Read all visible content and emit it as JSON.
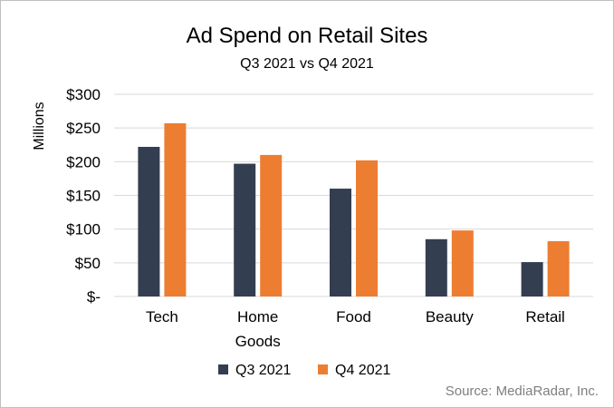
{
  "chart_data": {
    "type": "bar",
    "title": "Ad Spend on Retail Sites",
    "subtitle": "Q3 2021 vs Q4 2021",
    "ylabel": "Millions",
    "xlabel": "",
    "categories": [
      [
        "Tech"
      ],
      [
        "Home",
        "Goods"
      ],
      [
        "Food"
      ],
      [
        "Beauty"
      ],
      [
        "Retail"
      ]
    ],
    "series": [
      {
        "name": "Q3 2021",
        "color": "#333f50",
        "values": [
          222,
          197,
          160,
          85,
          51
        ]
      },
      {
        "name": "Q4 2021",
        "color": "#ed7d31",
        "values": [
          257,
          210,
          202,
          98,
          82
        ]
      }
    ],
    "ylim": [
      0,
      300
    ],
    "yticks": [
      0,
      50,
      100,
      150,
      200,
      250,
      300
    ],
    "ytick_labels": [
      "$-",
      "$50",
      "$100",
      "$150",
      "$200",
      "$250",
      "$300"
    ],
    "grid": true,
    "legend": "bottom",
    "source": "Source: MediaRadar, Inc."
  }
}
